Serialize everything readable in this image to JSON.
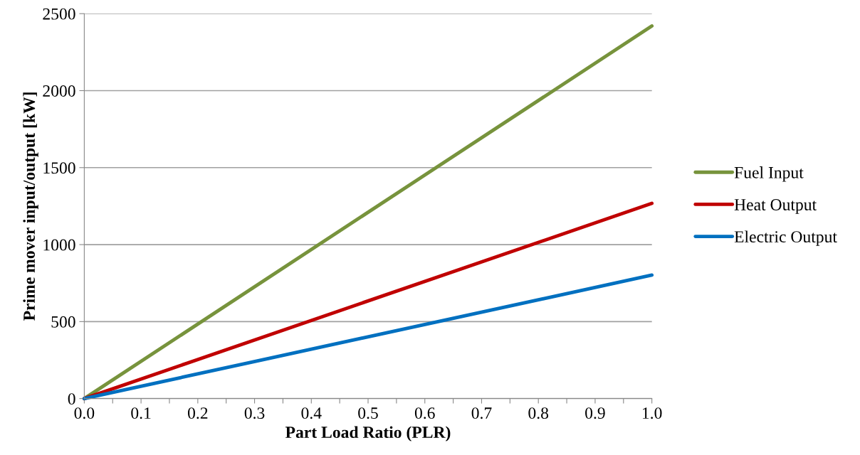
{
  "chart_data": {
    "type": "line",
    "xlabel": "Part Load Ratio (PLR)",
    "ylabel": "Prime mover input/output [kW]",
    "x": [
      0.0,
      1.0
    ],
    "series": [
      {
        "name": "Fuel Input",
        "color": "#77933c",
        "values": [
          0,
          2420
        ]
      },
      {
        "name": "Heat Output",
        "color": "#c00000",
        "values": [
          0,
          1268
        ]
      },
      {
        "name": "Electric Output",
        "color": "#0070c0",
        "values": [
          0,
          802
        ]
      }
    ],
    "xlim": [
      0.0,
      1.0
    ],
    "ylim": [
      0,
      2500
    ],
    "xticks": [
      {
        "value": 0.0,
        "label": "0.0"
      },
      {
        "value": 0.05,
        "label": null
      },
      {
        "value": 0.1,
        "label": "0.1"
      },
      {
        "value": 0.15,
        "label": null
      },
      {
        "value": 0.2,
        "label": "0.2"
      },
      {
        "value": 0.25,
        "label": null
      },
      {
        "value": 0.3,
        "label": "0.3"
      },
      {
        "value": 0.35,
        "label": null
      },
      {
        "value": 0.4,
        "label": "0.4"
      },
      {
        "value": 0.45,
        "label": null
      },
      {
        "value": 0.5,
        "label": "0.5"
      },
      {
        "value": 0.55,
        "label": null
      },
      {
        "value": 0.6,
        "label": "0.6"
      },
      {
        "value": 0.65,
        "label": null
      },
      {
        "value": 0.7,
        "label": "0.7"
      },
      {
        "value": 0.75,
        "label": null
      },
      {
        "value": 0.8,
        "label": "0.8"
      },
      {
        "value": 0.85,
        "label": null
      },
      {
        "value": 0.9,
        "label": "0.9"
      },
      {
        "value": 0.95,
        "label": null
      },
      {
        "value": 1.0,
        "label": "1.0"
      }
    ],
    "yticks": [
      0,
      500,
      1000,
      1500,
      2000,
      2500
    ],
    "grid": "y",
    "legend": "right",
    "marker": "none",
    "line_style": "solid"
  }
}
